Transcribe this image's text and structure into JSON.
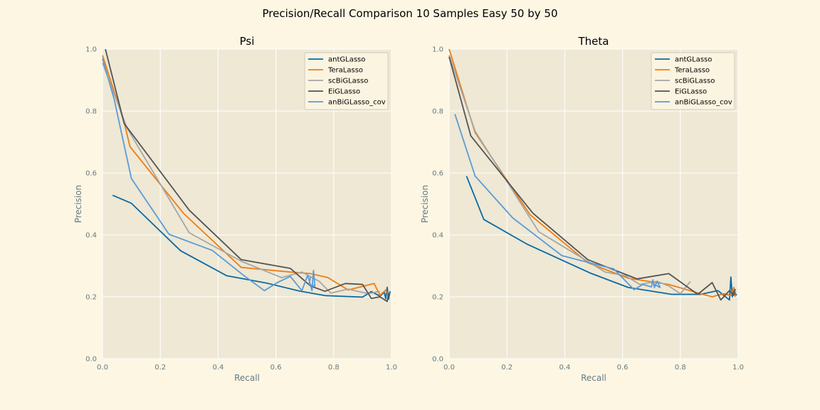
{
  "figure": {
    "suptitle": "Precision/Recall Comparison 10 Samples Easy 50 by 50"
  },
  "colors": {
    "background": "#fdf6e3",
    "axes_face": "#eee8d5",
    "grid": "#ffffff",
    "label": "#657b83"
  },
  "chart_data": [
    {
      "type": "line",
      "title": "Psi",
      "xlabel": "Recall",
      "ylabel": "Precision",
      "xlim": [
        0,
        1
      ],
      "ylim": [
        0,
        1
      ],
      "xticks": [
        "0.0",
        "0.2",
        "0.4",
        "0.6",
        "0.8",
        "1.0"
      ],
      "yticks": [
        "0.0",
        "0.2",
        "0.4",
        "0.6",
        "0.8",
        "1.0"
      ],
      "grid": true,
      "legend": "top-right",
      "series": [
        {
          "name": "antGLasso",
          "color": "#0b6aa2",
          "x": [
            0.035,
            0.1,
            0.27,
            0.43,
            0.57,
            0.68,
            0.77,
            0.9,
            0.93,
            0.96,
            0.975,
            0.98,
            0.985,
            0.99,
            0.995
          ],
          "y": [
            0.528,
            0.502,
            0.349,
            0.268,
            0.244,
            0.219,
            0.204,
            0.199,
            0.217,
            0.202,
            0.215,
            0.194,
            0.231,
            0.192,
            0.218
          ]
        },
        {
          "name": "TeraLasso",
          "color": "#ef7d13",
          "x": [
            0.0,
            0.075,
            0.095,
            0.28,
            0.48,
            0.65,
            0.72,
            0.78,
            0.85,
            0.94,
            0.96,
            0.98,
            0.99
          ],
          "y": [
            0.98,
            0.764,
            0.685,
            0.47,
            0.295,
            0.28,
            0.275,
            0.262,
            0.222,
            0.243,
            0.205,
            0.222,
            0.205
          ]
        },
        {
          "name": "scBiGLasso",
          "color": "#a6a6a6",
          "x": [
            0.0,
            0.085,
            0.3,
            0.48,
            0.62,
            0.69,
            0.75,
            0.79,
            0.85,
            0.92,
            0.96
          ],
          "y": [
            0.955,
            0.745,
            0.407,
            0.315,
            0.262,
            0.28,
            0.25,
            0.212,
            0.225,
            0.21,
            0.218
          ]
        },
        {
          "name": "EiGLasso",
          "color": "#545454",
          "x": [
            0.01,
            0.075,
            0.3,
            0.48,
            0.65,
            0.72,
            0.77,
            0.84,
            0.9,
            0.93,
            0.96,
            0.985,
            0.99
          ],
          "y": [
            1.0,
            0.76,
            0.48,
            0.32,
            0.292,
            0.235,
            0.218,
            0.243,
            0.24,
            0.195,
            0.2,
            0.185,
            0.212
          ]
        },
        {
          "name": "anBiGLasso_cov",
          "color": "#5b9bd5",
          "x": [
            0.0,
            0.04,
            0.1,
            0.23,
            0.38,
            0.49,
            0.56,
            0.605,
            0.65,
            0.69,
            0.71,
            0.725,
            0.73,
            0.735,
            0.715,
            0.72
          ],
          "y": [
            0.97,
            0.84,
            0.582,
            0.402,
            0.35,
            0.268,
            0.22,
            0.246,
            0.266,
            0.22,
            0.27,
            0.22,
            0.285,
            0.235,
            0.24,
            0.265
          ]
        }
      ]
    },
    {
      "type": "line",
      "title": "Theta",
      "xlabel": "Recall",
      "ylabel": "Precision",
      "xlim": [
        0,
        1
      ],
      "ylim": [
        0,
        1
      ],
      "xticks": [
        "0.0",
        "0.2",
        "0.4",
        "0.6",
        "0.8",
        "1.0"
      ],
      "yticks": [
        "0.0",
        "0.2",
        "0.4",
        "0.6",
        "0.8",
        "1.0"
      ],
      "grid": true,
      "legend": "top-right",
      "series": [
        {
          "name": "antGLasso",
          "color": "#0b6aa2",
          "x": [
            0.06,
            0.12,
            0.27,
            0.49,
            0.62,
            0.77,
            0.87,
            0.93,
            0.97,
            0.975,
            0.98,
            0.985,
            0.99,
            0.995
          ],
          "y": [
            0.59,
            0.45,
            0.37,
            0.276,
            0.23,
            0.208,
            0.208,
            0.22,
            0.19,
            0.264,
            0.2,
            0.23,
            0.21,
            0.205
          ]
        },
        {
          "name": "TeraLasso",
          "color": "#ef7d13",
          "x": [
            0.0,
            0.09,
            0.28,
            0.48,
            0.62,
            0.76,
            0.87,
            0.91,
            0.95,
            0.975,
            0.985,
            0.99
          ],
          "y": [
            1.0,
            0.73,
            0.465,
            0.31,
            0.26,
            0.24,
            0.21,
            0.2,
            0.21,
            0.204,
            0.23,
            0.2
          ]
        },
        {
          "name": "scBiGLasso",
          "color": "#a6a6a6",
          "x": [
            0.0,
            0.09,
            0.31,
            0.47,
            0.54,
            0.61,
            0.66,
            0.72,
            0.76,
            0.8,
            0.835
          ],
          "y": [
            0.98,
            0.735,
            0.41,
            0.32,
            0.28,
            0.268,
            0.24,
            0.25,
            0.235,
            0.21,
            0.25
          ]
        },
        {
          "name": "EiGLasso",
          "color": "#545454",
          "x": [
            0.0,
            0.075,
            0.29,
            0.48,
            0.65,
            0.76,
            0.86,
            0.91,
            0.94,
            0.97,
            0.985,
            0.99
          ],
          "y": [
            0.975,
            0.72,
            0.47,
            0.32,
            0.258,
            0.275,
            0.208,
            0.246,
            0.19,
            0.22,
            0.205,
            0.225
          ]
        },
        {
          "name": "anBiGLasso_cov",
          "color": "#5b9bd5",
          "x": [
            0.02,
            0.09,
            0.22,
            0.39,
            0.57,
            0.64,
            0.67,
            0.7,
            0.705,
            0.71,
            0.72,
            0.73,
            0.71
          ],
          "y": [
            0.79,
            0.59,
            0.455,
            0.333,
            0.29,
            0.223,
            0.24,
            0.232,
            0.255,
            0.23,
            0.25,
            0.23,
            0.24
          ]
        }
      ]
    }
  ]
}
